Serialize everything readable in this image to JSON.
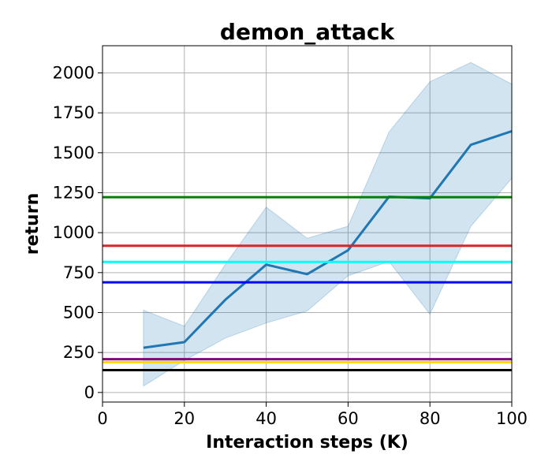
{
  "chart_data": {
    "type": "line",
    "title": "demon_attack",
    "xlabel": "Interaction steps (K)",
    "ylabel": "return",
    "xlim": [
      0,
      100
    ],
    "ylim": [
      -60,
      2170
    ],
    "xticks": [
      0,
      20,
      40,
      60,
      80,
      100
    ],
    "yticks": [
      0,
      250,
      500,
      750,
      1000,
      1250,
      1500,
      1750,
      2000
    ],
    "xtick_labels": [
      "0",
      "20",
      "40",
      "60",
      "80",
      "100"
    ],
    "ytick_labels": [
      "0",
      "250",
      "500",
      "750",
      "1000",
      "1250",
      "1500",
      "1750",
      "2000"
    ],
    "grid": true,
    "series": [
      {
        "color": "#1f77b4",
        "x": [
          10,
          20,
          30,
          40,
          50,
          60,
          70,
          80,
          90,
          100
        ],
        "y": [
          280,
          315,
          580,
          800,
          740,
          890,
          1225,
          1215,
          1550,
          1635
        ],
        "band_lower": [
          40,
          200,
          340,
          435,
          510,
          730,
          820,
          490,
          1040,
          1340
        ],
        "band_upper": [
          515,
          415,
          800,
          1160,
          965,
          1040,
          1630,
          1945,
          2065,
          1930
        ]
      }
    ],
    "hlines": [
      {
        "y": 1222,
        "color": "#008000"
      },
      {
        "y": 918,
        "color": "#d62728"
      },
      {
        "y": 817,
        "color": "#00ffff"
      },
      {
        "y": 689,
        "color": "#0000ff"
      },
      {
        "y": 208,
        "color": "#800080"
      },
      {
        "y": 190,
        "color": "#ffd700"
      },
      {
        "y": 140,
        "color": "#000000"
      }
    ]
  }
}
